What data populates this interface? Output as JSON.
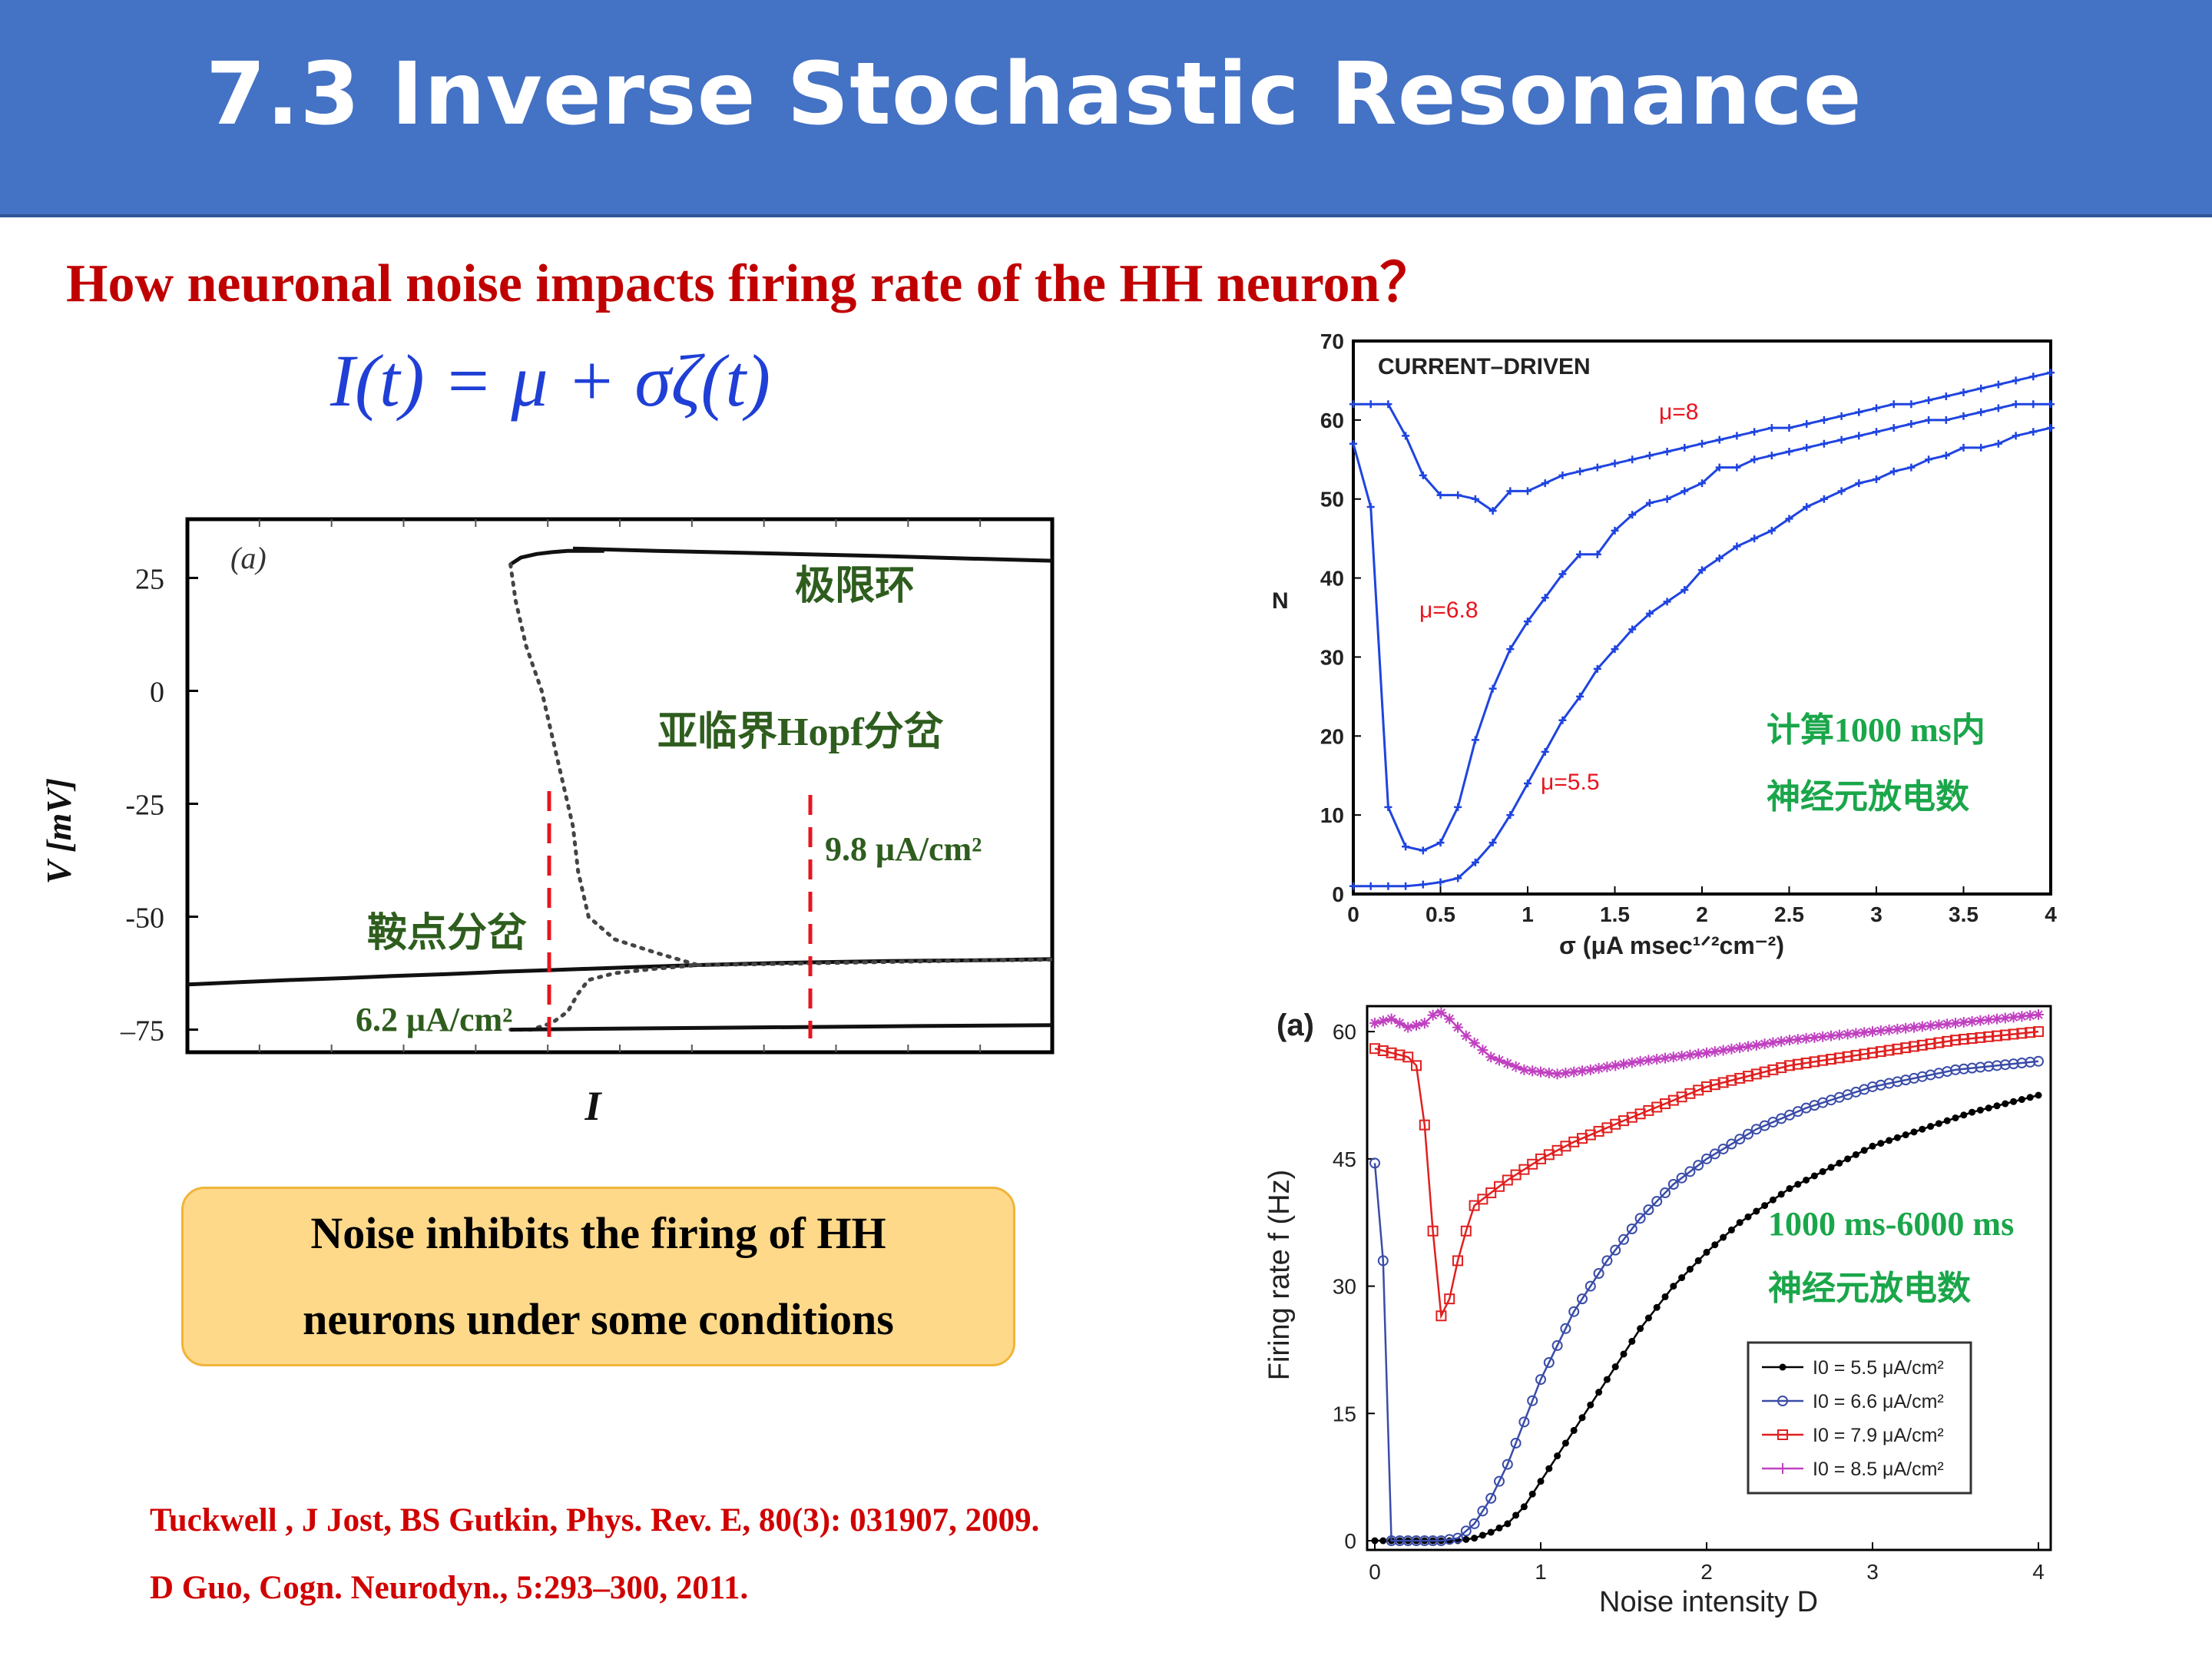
{
  "header": {
    "title": "7.3 Inverse Stochastic Resonance"
  },
  "subtitle": "How neuronal noise impacts firing rate of the HH neuron？",
  "equation": "I(t) = μ + σζ(t)",
  "callout": {
    "text": "Noise inhibits the firing of HH\nneurons under some conditions"
  },
  "references": [
    "Tuckwell , J Jost, BS Gutkin, Phys. Rev. E, 80(3): 031907, 2009.",
    "D Guo, Cogn. Neurodyn., 5:293–300, 2011."
  ],
  "colors": {
    "header_bg": "#4472c4",
    "subtitle": "#c00000",
    "equation": "#1f3fd6",
    "annotation_green": "#2e5d1e",
    "bright_green": "#1aa64a",
    "dashed_red": "#e8141e",
    "curve_blue": "#1f44e0"
  },
  "chart_data": [
    {
      "type": "line",
      "panel_label": "(a)",
      "xlabel": "I",
      "ylabel": "V  [mV]",
      "yticks": [
        "25",
        "0",
        "-25",
        "-50",
        "–75"
      ],
      "ylim": [
        -80,
        38
      ],
      "annotations": {
        "limit_cycle": "极限环",
        "subcritical_hopf": "亚临界Hopf分岔",
        "saddle_node": "鞍点分岔",
        "right_threshold": "9.8 μA/cm²",
        "left_threshold": "6.2 μA/cm²"
      },
      "series": [
        {
          "style": "solid",
          "x": [
            0,
            1,
            2,
            3,
            4,
            5,
            6,
            6.5,
            7,
            7.5,
            8,
            8.5,
            9,
            9.5,
            9.8
          ],
          "y": [
            -65,
            -64.5,
            -64,
            -63.6,
            -63.1,
            -62.7,
            -62.2,
            -62,
            -61.8,
            -61.6,
            -61.4,
            -61.2,
            -61,
            -60.8,
            -60.7
          ]
        },
        {
          "style": "solid",
          "x": [
            9.8,
            10.5,
            11.5,
            12.5,
            13.5,
            14.5,
            15.5,
            16,
            16.6
          ],
          "y": [
            -60.7,
            -60.5,
            -60.2,
            -60,
            -59.8,
            -59.7,
            -59.6,
            -59.5,
            -59.4
          ]
        },
        {
          "style": "dotted",
          "x": [
            9.8,
            11,
            12,
            13,
            14,
            15,
            16,
            16.6
          ],
          "y": [
            -60.7,
            -60.5,
            -60.3,
            -60.1,
            -59.9,
            -59.7,
            -59.6,
            -59.5
          ]
        },
        {
          "style": "solid",
          "x": [
            6.2,
            6.4,
            6.7,
            7,
            7.3,
            7.6,
            8
          ],
          "y": [
            28,
            29.5,
            30.3,
            30.7,
            31,
            31,
            31
          ]
        },
        {
          "style": "solid",
          "x": [
            7.4,
            9,
            10.5,
            12,
            13.5,
            15,
            16.6
          ],
          "y": [
            31.5,
            31,
            30.6,
            30.2,
            29.8,
            29.3,
            28.8
          ]
        },
        {
          "style": "dotted",
          "x": [
            6.2,
            6.3,
            6.5,
            6.8,
            7.0,
            7.2,
            7.4,
            7.5,
            7.7,
            8.2,
            9.0,
            9.8
          ],
          "y": [
            28,
            20,
            10,
            0,
            -10,
            -20,
            -30,
            -40,
            -50,
            -55,
            -58,
            -60.7
          ]
        },
        {
          "style": "dotted",
          "x": [
            6.2,
            6.6,
            7.0,
            7.3,
            7.5,
            7.7,
            8.2,
            9.0,
            9.8
          ],
          "y": [
            -75,
            -75,
            -73.5,
            -71,
            -67,
            -64,
            -62.5,
            -61.5,
            -60.7
          ]
        },
        {
          "style": "solid",
          "x": [
            6.2,
            8,
            10,
            12,
            14,
            16.6
          ],
          "y": [
            -75,
            -74.8,
            -74.6,
            -74.4,
            -74.2,
            -74
          ]
        }
      ]
    },
    {
      "type": "line",
      "title": "CURRENT–DRIVEN",
      "xlabel": "σ (μA msec¹ᐟ²cm⁻²)",
      "ylabel": "N",
      "xlim": [
        0,
        4
      ],
      "ylim": [
        0,
        70
      ],
      "xticks": [
        "0",
        "0.5",
        "1",
        "1.5",
        "2",
        "2.5",
        "3",
        "3.5",
        "4"
      ],
      "yticks": [
        "0",
        "10",
        "20",
        "30",
        "40",
        "50",
        "60",
        "70"
      ],
      "note_line1": "计算1000 ms内",
      "note_line2": "神经元放电数",
      "series": [
        {
          "name": "μ=8",
          "x": [
            0,
            0.1,
            0.2,
            0.3,
            0.4,
            0.5,
            0.6,
            0.7,
            0.8,
            0.9,
            1.0,
            1.1,
            1.2,
            1.3,
            1.4,
            1.5,
            1.6,
            1.7,
            1.8,
            1.9,
            2.0,
            2.1,
            2.2,
            2.3,
            2.4,
            2.5,
            2.6,
            2.7,
            2.8,
            2.9,
            3.0,
            3.1,
            3.2,
            3.3,
            3.4,
            3.5,
            3.6,
            3.7,
            3.8,
            3.9,
            4.0
          ],
          "y": [
            62,
            62,
            62,
            58,
            53,
            50.5,
            50.5,
            50,
            48.5,
            51,
            51,
            52,
            53,
            53.5,
            54,
            54.5,
            55,
            55.5,
            56,
            56.5,
            57,
            57.5,
            58,
            58.5,
            59,
            59,
            59.5,
            60,
            60.5,
            61,
            61.5,
            62,
            62,
            62.5,
            63,
            63.5,
            64,
            64.5,
            65,
            65.5,
            66
          ]
        },
        {
          "name": "μ=6.8",
          "x": [
            0,
            0.1,
            0.2,
            0.3,
            0.4,
            0.5,
            0.6,
            0.7,
            0.8,
            0.9,
            1.0,
            1.1,
            1.2,
            1.3,
            1.4,
            1.5,
            1.6,
            1.7,
            1.8,
            1.9,
            2.0,
            2.1,
            2.2,
            2.3,
            2.4,
            2.5,
            2.6,
            2.7,
            2.8,
            2.9,
            3.0,
            3.1,
            3.2,
            3.3,
            3.4,
            3.5,
            3.6,
            3.7,
            3.8,
            3.9,
            4.0
          ],
          "y": [
            57,
            49,
            11,
            6,
            5.5,
            6.5,
            11,
            19.5,
            26,
            31,
            34.5,
            37.5,
            40.5,
            43,
            43,
            46,
            48,
            49.5,
            50,
            51,
            52,
            54,
            54,
            55,
            55.5,
            56,
            56.5,
            57,
            57.5,
            58,
            58.5,
            59,
            59.5,
            60,
            60,
            60.5,
            61,
            61.5,
            62,
            62,
            62
          ]
        },
        {
          "name": "μ=5.5",
          "x": [
            0,
            0.1,
            0.2,
            0.3,
            0.4,
            0.5,
            0.6,
            0.7,
            0.8,
            0.9,
            1.0,
            1.1,
            1.2,
            1.3,
            1.4,
            1.5,
            1.6,
            1.7,
            1.8,
            1.9,
            2.0,
            2.1,
            2.2,
            2.3,
            2.4,
            2.5,
            2.6,
            2.7,
            2.8,
            2.9,
            3.0,
            3.1,
            3.2,
            3.3,
            3.4,
            3.5,
            3.6,
            3.7,
            3.8,
            3.9,
            4.0
          ],
          "y": [
            1,
            1,
            1,
            1,
            1.2,
            1.5,
            2,
            4,
            6.5,
            10,
            14,
            18,
            22,
            25,
            28.5,
            31,
            33.5,
            35.5,
            37,
            38.5,
            41,
            42.5,
            44,
            45,
            46,
            47.5,
            49,
            50,
            51,
            52,
            52.5,
            53.5,
            54,
            55,
            55.5,
            56.5,
            56.5,
            57,
            58,
            58.5,
            59
          ]
        }
      ]
    },
    {
      "type": "line",
      "panel_label": "(a)",
      "xlabel": "Noise intensity D",
      "ylabel": "Firing rate f (Hz)",
      "xlim": [
        0,
        4
      ],
      "ylim": [
        0,
        63
      ],
      "xticks": [
        "0",
        "1",
        "2",
        "3",
        "4"
      ],
      "yticks": [
        "0",
        "15",
        "30",
        "45",
        "60"
      ],
      "note_line1": "1000 ms-6000 ms",
      "note_line2": "神经元放电数",
      "series": [
        {
          "name": "I0 = 5.5 μA/cm²",
          "color": "#000000",
          "marker": "dot",
          "x": [
            0,
            0.5,
            0.6,
            0.7,
            0.8,
            0.9,
            1.0,
            1.2,
            1.4,
            1.6,
            1.8,
            2.0,
            2.2,
            2.5,
            2.8,
            3.0,
            3.3,
            3.6,
            4.0
          ],
          "y": [
            0,
            0,
            0.3,
            1,
            2,
            4,
            7,
            13,
            19,
            25,
            30,
            34,
            37.5,
            41.5,
            44.5,
            46.5,
            48.5,
            50.5,
            52.5
          ]
        },
        {
          "name": "I0 = 6.6 μA/cm²",
          "color": "#3a4ca8",
          "marker": "circle",
          "x": [
            0,
            0.05,
            0.1,
            0.2,
            0.3,
            0.4,
            0.5,
            0.6,
            0.7,
            0.8,
            0.9,
            1.0,
            1.2,
            1.4,
            1.6,
            1.8,
            2.0,
            2.3,
            2.6,
            3.0,
            3.5,
            4.0
          ],
          "y": [
            44.5,
            33,
            0,
            0,
            0,
            0,
            0.3,
            2,
            5,
            9,
            14,
            19,
            27,
            33,
            38,
            42,
            45,
            48.5,
            51,
            53.5,
            55.5,
            56.5
          ]
        },
        {
          "name": "I0 = 7.9 μA/cm²",
          "color": "#e02020",
          "marker": "square",
          "x": [
            0,
            0.1,
            0.2,
            0.25,
            0.3,
            0.35,
            0.4,
            0.45,
            0.5,
            0.55,
            0.6,
            0.7,
            0.8,
            1.0,
            1.2,
            1.5,
            2.0,
            2.5,
            3.0,
            3.5,
            4.0
          ],
          "y": [
            58,
            57.5,
            57,
            56,
            49,
            36.5,
            26.5,
            28.5,
            33,
            36.5,
            39.5,
            41,
            42.5,
            45,
            47,
            49.5,
            53.5,
            56,
            57.5,
            59,
            60
          ]
        },
        {
          "name": "I0 = 8.5 μA/cm²",
          "color": "#c040c0",
          "marker": "star",
          "x": [
            0,
            0.1,
            0.2,
            0.3,
            0.38,
            0.45,
            0.55,
            0.7,
            0.9,
            1.1,
            1.3,
            1.6,
            2.0,
            2.5,
            3.0,
            3.5,
            4.0
          ],
          "y": [
            61,
            61.5,
            60.5,
            61,
            62.5,
            61.5,
            59.5,
            57,
            55.5,
            55,
            55.5,
            56.5,
            57.5,
            59,
            60,
            61,
            62
          ]
        }
      ]
    }
  ]
}
